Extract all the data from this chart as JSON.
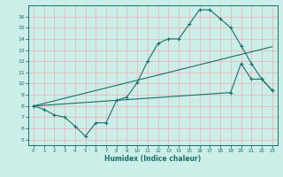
{
  "xlabel": "Humidex (Indice chaleur)",
  "bg_color": "#cceee8",
  "grid_color": "#e8b8b8",
  "line_color": "#1a6e6a",
  "xlim": [
    -0.5,
    23.5
  ],
  "ylim": [
    4.5,
    17.0
  ],
  "xticks": [
    0,
    1,
    2,
    3,
    4,
    5,
    6,
    7,
    8,
    9,
    10,
    11,
    12,
    13,
    14,
    15,
    16,
    17,
    18,
    19,
    20,
    21,
    22,
    23
  ],
  "yticks": [
    5,
    6,
    7,
    8,
    9,
    10,
    11,
    12,
    13,
    14,
    15,
    16
  ],
  "curve1_x": [
    0,
    1,
    2,
    3,
    4,
    5,
    6,
    7,
    8,
    9,
    10,
    11,
    12,
    13,
    14,
    15,
    16,
    17,
    18,
    19,
    20,
    21,
    22,
    23
  ],
  "curve1_y": [
    8.0,
    7.7,
    7.2,
    7.0,
    6.2,
    5.3,
    6.5,
    6.5,
    8.5,
    8.8,
    10.1,
    12.0,
    13.6,
    14.0,
    14.0,
    15.3,
    16.6,
    16.6,
    15.8,
    15.0,
    13.4,
    11.8,
    10.4,
    9.4
  ],
  "curve2_x": [
    0,
    23
  ],
  "curve2_y": [
    8.0,
    13.3
  ],
  "curve3_x": [
    0,
    19,
    20,
    21,
    22,
    23
  ],
  "curve3_y": [
    8.0,
    9.2,
    11.8,
    10.4,
    10.4,
    9.4
  ]
}
